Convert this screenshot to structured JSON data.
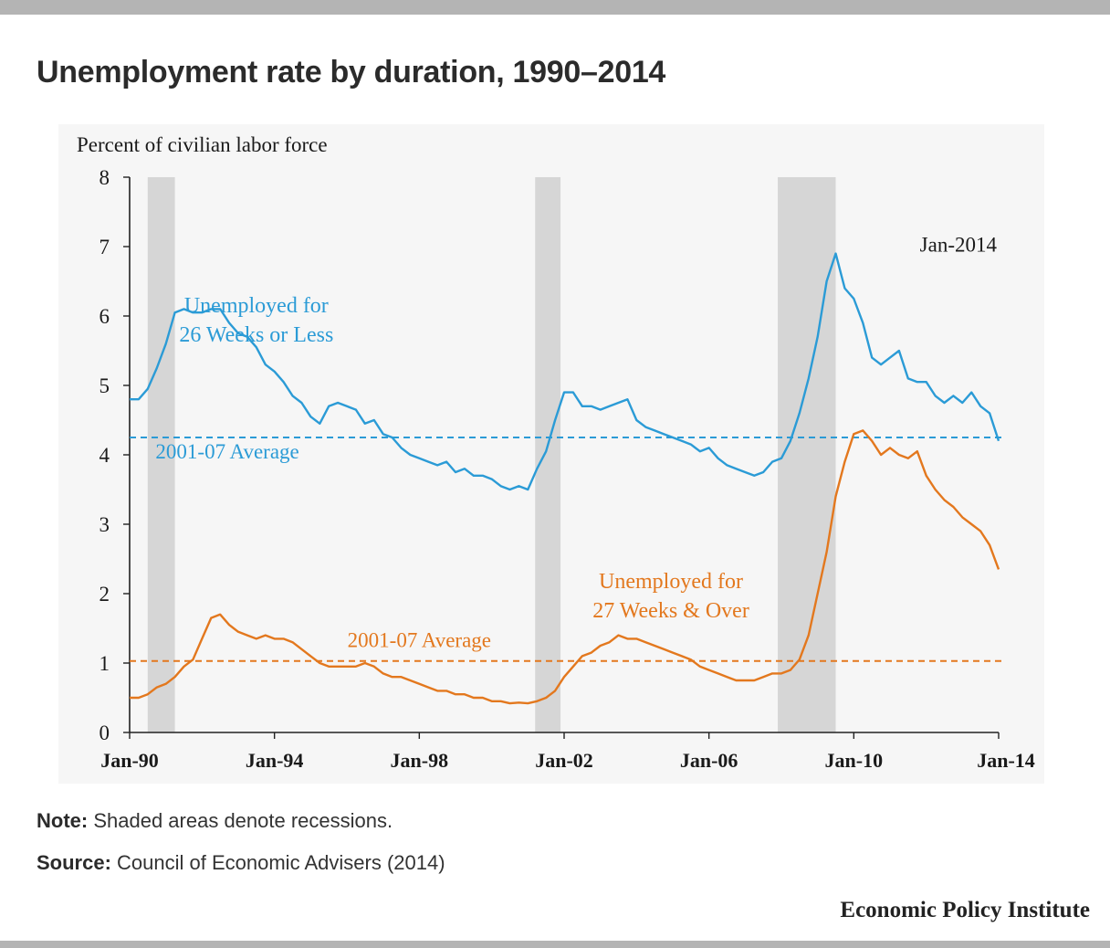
{
  "title": "Unemployment rate by duration, 1990–2014",
  "note": {
    "label": "Note:",
    "text": " Shaded areas denote recessions."
  },
  "source": {
    "label": "Source:",
    "text": " Council of Economic Advisers (2014)"
  },
  "brand": "Economic Policy Institute",
  "chart_data": {
    "type": "line",
    "title": "",
    "ylabel": "Percent of civilian labor force",
    "xlabel": "",
    "ylim": [
      0,
      8
    ],
    "xlim": [
      1990.0,
      2014.0
    ],
    "y_ticks": [
      0,
      1,
      2,
      3,
      4,
      5,
      6,
      7,
      8
    ],
    "x_ticks": [
      {
        "label": "Jan-90",
        "value": 1990.0
      },
      {
        "label": "Jan-94",
        "value": 1994.0
      },
      {
        "label": "Jan-98",
        "value": 1998.0
      },
      {
        "label": "Jan-02",
        "value": 2002.0
      },
      {
        "label": "Jan-06",
        "value": 2006.0
      },
      {
        "label": "Jan-10",
        "value": 2010.0
      },
      {
        "label": "Jan-14",
        "value": 2014.0
      }
    ],
    "grid": false,
    "legend": "none",
    "date_annotation": "Jan-2014",
    "recessions": [
      {
        "start": 1990.5,
        "end": 1991.25
      },
      {
        "start": 2001.2,
        "end": 2001.9
      },
      {
        "start": 2007.9,
        "end": 2009.5
      }
    ],
    "series": [
      {
        "name": "Unemployed for 26 Weeks or Less",
        "label_lines": [
          "Unemployed for",
          "26 Weeks or Less"
        ],
        "color": "#2b9bd6",
        "average": {
          "value": 4.25,
          "label": "2001-07 Average"
        },
        "points": [
          [
            1990.0,
            4.8
          ],
          [
            1990.25,
            4.8
          ],
          [
            1990.5,
            4.95
          ],
          [
            1990.75,
            5.25
          ],
          [
            1991.0,
            5.6
          ],
          [
            1991.25,
            6.05
          ],
          [
            1991.5,
            6.1
          ],
          [
            1991.75,
            6.05
          ],
          [
            1992.0,
            6.05
          ],
          [
            1992.25,
            6.1
          ],
          [
            1992.5,
            6.1
          ],
          [
            1992.75,
            5.9
          ],
          [
            1993.0,
            5.75
          ],
          [
            1993.25,
            5.7
          ],
          [
            1993.5,
            5.55
          ],
          [
            1993.75,
            5.3
          ],
          [
            1994.0,
            5.2
          ],
          [
            1994.25,
            5.05
          ],
          [
            1994.5,
            4.85
          ],
          [
            1994.75,
            4.75
          ],
          [
            1995.0,
            4.55
          ],
          [
            1995.25,
            4.45
          ],
          [
            1995.5,
            4.7
          ],
          [
            1995.75,
            4.75
          ],
          [
            1996.0,
            4.7
          ],
          [
            1996.25,
            4.65
          ],
          [
            1996.5,
            4.45
          ],
          [
            1996.75,
            4.5
          ],
          [
            1997.0,
            4.3
          ],
          [
            1997.25,
            4.25
          ],
          [
            1997.5,
            4.1
          ],
          [
            1997.75,
            4.0
          ],
          [
            1998.0,
            3.95
          ],
          [
            1998.25,
            3.9
          ],
          [
            1998.5,
            3.85
          ],
          [
            1998.75,
            3.9
          ],
          [
            1999.0,
            3.75
          ],
          [
            1999.25,
            3.8
          ],
          [
            1999.5,
            3.7
          ],
          [
            1999.75,
            3.7
          ],
          [
            2000.0,
            3.65
          ],
          [
            2000.25,
            3.55
          ],
          [
            2000.5,
            3.5
          ],
          [
            2000.75,
            3.55
          ],
          [
            2001.0,
            3.5
          ],
          [
            2001.25,
            3.8
          ],
          [
            2001.5,
            4.05
          ],
          [
            2001.75,
            4.5
          ],
          [
            2002.0,
            4.9
          ],
          [
            2002.25,
            4.9
          ],
          [
            2002.5,
            4.7
          ],
          [
            2002.75,
            4.7
          ],
          [
            2003.0,
            4.65
          ],
          [
            2003.25,
            4.7
          ],
          [
            2003.5,
            4.75
          ],
          [
            2003.75,
            4.8
          ],
          [
            2004.0,
            4.5
          ],
          [
            2004.25,
            4.4
          ],
          [
            2004.5,
            4.35
          ],
          [
            2004.75,
            4.3
          ],
          [
            2005.0,
            4.25
          ],
          [
            2005.25,
            4.2
          ],
          [
            2005.5,
            4.15
          ],
          [
            2005.75,
            4.05
          ],
          [
            2006.0,
            4.1
          ],
          [
            2006.25,
            3.95
          ],
          [
            2006.5,
            3.85
          ],
          [
            2006.75,
            3.8
          ],
          [
            2007.0,
            3.75
          ],
          [
            2007.25,
            3.7
          ],
          [
            2007.5,
            3.75
          ],
          [
            2007.75,
            3.9
          ],
          [
            2008.0,
            3.95
          ],
          [
            2008.25,
            4.2
          ],
          [
            2008.5,
            4.6
          ],
          [
            2008.75,
            5.1
          ],
          [
            2009.0,
            5.7
          ],
          [
            2009.25,
            6.5
          ],
          [
            2009.5,
            6.9
          ],
          [
            2009.75,
            6.4
          ],
          [
            2010.0,
            6.25
          ],
          [
            2010.25,
            5.9
          ],
          [
            2010.5,
            5.4
          ],
          [
            2010.75,
            5.3
          ],
          [
            2011.0,
            5.4
          ],
          [
            2011.25,
            5.5
          ],
          [
            2011.5,
            5.1
          ],
          [
            2011.75,
            5.05
          ],
          [
            2012.0,
            5.05
          ],
          [
            2012.25,
            4.85
          ],
          [
            2012.5,
            4.75
          ],
          [
            2012.75,
            4.85
          ],
          [
            2013.0,
            4.75
          ],
          [
            2013.25,
            4.9
          ],
          [
            2013.5,
            4.7
          ],
          [
            2013.75,
            4.6
          ],
          [
            2014.0,
            4.2
          ]
        ]
      },
      {
        "name": "Unemployed for 27 Weeks & Over",
        "label_lines": [
          "Unemployed for",
          "27 Weeks & Over"
        ],
        "color": "#e3781e",
        "average": {
          "value": 1.03,
          "label": "2001-07 Average"
        },
        "points": [
          [
            1990.0,
            0.5
          ],
          [
            1990.25,
            0.5
          ],
          [
            1990.5,
            0.55
          ],
          [
            1990.75,
            0.65
          ],
          [
            1991.0,
            0.7
          ],
          [
            1991.25,
            0.8
          ],
          [
            1991.5,
            0.95
          ],
          [
            1991.75,
            1.05
          ],
          [
            1992.0,
            1.35
          ],
          [
            1992.25,
            1.65
          ],
          [
            1992.5,
            1.7
          ],
          [
            1992.75,
            1.55
          ],
          [
            1993.0,
            1.45
          ],
          [
            1993.25,
            1.4
          ],
          [
            1993.5,
            1.35
          ],
          [
            1993.75,
            1.4
          ],
          [
            1994.0,
            1.35
          ],
          [
            1994.25,
            1.35
          ],
          [
            1994.5,
            1.3
          ],
          [
            1994.75,
            1.2
          ],
          [
            1995.0,
            1.1
          ],
          [
            1995.25,
            1.0
          ],
          [
            1995.5,
            0.95
          ],
          [
            1995.75,
            0.95
          ],
          [
            1996.0,
            0.95
          ],
          [
            1996.25,
            0.95
          ],
          [
            1996.5,
            1.0
          ],
          [
            1996.75,
            0.95
          ],
          [
            1997.0,
            0.85
          ],
          [
            1997.25,
            0.8
          ],
          [
            1997.5,
            0.8
          ],
          [
            1997.75,
            0.75
          ],
          [
            1998.0,
            0.7
          ],
          [
            1998.25,
            0.65
          ],
          [
            1998.5,
            0.6
          ],
          [
            1998.75,
            0.6
          ],
          [
            1999.0,
            0.55
          ],
          [
            1999.25,
            0.55
          ],
          [
            1999.5,
            0.5
          ],
          [
            1999.75,
            0.5
          ],
          [
            2000.0,
            0.45
          ],
          [
            2000.25,
            0.45
          ],
          [
            2000.5,
            0.42
          ],
          [
            2000.75,
            0.43
          ],
          [
            2001.0,
            0.42
          ],
          [
            2001.25,
            0.45
          ],
          [
            2001.5,
            0.5
          ],
          [
            2001.75,
            0.6
          ],
          [
            2002.0,
            0.8
          ],
          [
            2002.25,
            0.95
          ],
          [
            2002.5,
            1.1
          ],
          [
            2002.75,
            1.15
          ],
          [
            2003.0,
            1.25
          ],
          [
            2003.25,
            1.3
          ],
          [
            2003.5,
            1.4
          ],
          [
            2003.75,
            1.35
          ],
          [
            2004.0,
            1.35
          ],
          [
            2004.25,
            1.3
          ],
          [
            2004.5,
            1.25
          ],
          [
            2004.75,
            1.2
          ],
          [
            2005.0,
            1.15
          ],
          [
            2005.25,
            1.1
          ],
          [
            2005.5,
            1.05
          ],
          [
            2005.75,
            0.95
          ],
          [
            2006.0,
            0.9
          ],
          [
            2006.25,
            0.85
          ],
          [
            2006.5,
            0.8
          ],
          [
            2006.75,
            0.75
          ],
          [
            2007.0,
            0.75
          ],
          [
            2007.25,
            0.75
          ],
          [
            2007.5,
            0.8
          ],
          [
            2007.75,
            0.85
          ],
          [
            2008.0,
            0.85
          ],
          [
            2008.25,
            0.9
          ],
          [
            2008.5,
            1.05
          ],
          [
            2008.75,
            1.4
          ],
          [
            2009.0,
            2.0
          ],
          [
            2009.25,
            2.6
          ],
          [
            2009.5,
            3.4
          ],
          [
            2009.75,
            3.9
          ],
          [
            2010.0,
            4.3
          ],
          [
            2010.25,
            4.35
          ],
          [
            2010.5,
            4.2
          ],
          [
            2010.75,
            4.0
          ],
          [
            2011.0,
            4.1
          ],
          [
            2011.25,
            4.0
          ],
          [
            2011.5,
            3.95
          ],
          [
            2011.75,
            4.05
          ],
          [
            2012.0,
            3.7
          ],
          [
            2012.25,
            3.5
          ],
          [
            2012.5,
            3.35
          ],
          [
            2012.75,
            3.25
          ],
          [
            2013.0,
            3.1
          ],
          [
            2013.25,
            3.0
          ],
          [
            2013.5,
            2.9
          ],
          [
            2013.75,
            2.7
          ],
          [
            2014.0,
            2.35
          ]
        ]
      }
    ]
  }
}
